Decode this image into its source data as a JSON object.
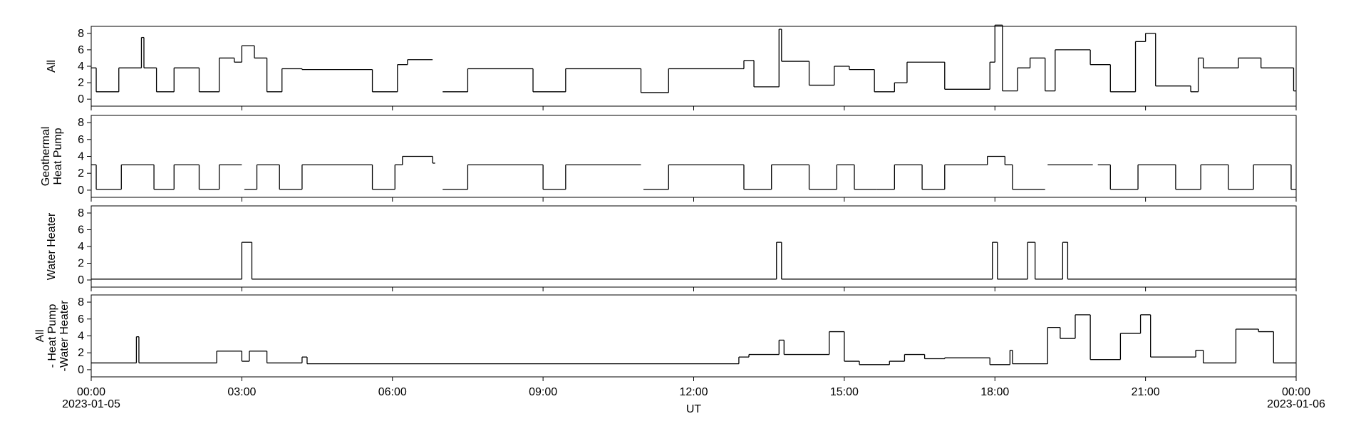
{
  "chart_data": [
    {
      "type": "line",
      "step": "post",
      "color": "#000000",
      "ylabel": "All",
      "ylim": [
        -0.85,
        8.85
      ],
      "yticks": [
        0,
        2,
        4,
        6,
        8
      ],
      "x": [
        0,
        0.1,
        0.55,
        1.0,
        1.05,
        1.3,
        1.65,
        2.15,
        2.55,
        2.85,
        3.0,
        3.25,
        3.5,
        3.8,
        4.2,
        5.6,
        6.1,
        6.3,
        6.8,
        7.0,
        7.5,
        8.8,
        9.45,
        10.95,
        11.5,
        13.0,
        13.2,
        13.7,
        13.75,
        14.3,
        14.8,
        15.1,
        15.6,
        16.0,
        16.25,
        17.0,
        17.9,
        18.0,
        18.15,
        18.45,
        18.7,
        19.0,
        19.2,
        19.9,
        20.3,
        20.8,
        21.0,
        21.2,
        21.9,
        22.05,
        22.15,
        22.85,
        23.3,
        23.95,
        24
      ],
      "values": [
        3.8,
        0.9,
        3.8,
        7.5,
        3.8,
        0.9,
        3.8,
        0.9,
        5.0,
        4.5,
        6.5,
        5.0,
        0.9,
        3.7,
        3.6,
        0.9,
        4.2,
        4.8,
        null,
        0.9,
        3.7,
        0.9,
        3.7,
        0.8,
        3.7,
        4.7,
        1.5,
        8.5,
        4.6,
        1.7,
        4.0,
        3.6,
        0.9,
        2.0,
        4.5,
        1.2,
        4.5,
        9.0,
        1.0,
        3.8,
        5.0,
        1.0,
        6.0,
        4.2,
        0.9,
        7.0,
        8.0,
        1.6,
        0.9,
        5.0,
        3.8,
        5.0,
        3.8,
        1.0,
        1.0
      ]
    },
    {
      "type": "line",
      "step": "post",
      "color": "#000000",
      "ylabel": "Geothermal\nHeat Pump",
      "ylim": [
        -0.85,
        8.85
      ],
      "yticks": [
        0,
        2,
        4,
        6,
        8
      ],
      "x": [
        0,
        0.1,
        0.6,
        1.25,
        1.65,
        2.15,
        2.55,
        3.0,
        3.05,
        3.3,
        3.75,
        4.2,
        5.6,
        6.05,
        6.2,
        6.8,
        6.85,
        7.0,
        7.5,
        9.0,
        9.45,
        10.95,
        11.0,
        11.5,
        13.0,
        13.55,
        14.3,
        14.85,
        15.2,
        15.65,
        16.0,
        16.55,
        17.0,
        17.85,
        18.2,
        18.35,
        19.0,
        19.05,
        19.95,
        20.05,
        20.3,
        20.85,
        21.6,
        22.1,
        22.65,
        23.15,
        23.9,
        24
      ],
      "values": [
        3.0,
        0.1,
        3.0,
        0.1,
        3.0,
        0.1,
        3.0,
        null,
        0.1,
        3.0,
        0.1,
        3.0,
        0.1,
        3.0,
        4.0,
        3.2,
        null,
        0.1,
        3.0,
        0.1,
        3.0,
        null,
        0.1,
        3.0,
        0.1,
        3.0,
        0.1,
        3.0,
        0.1,
        0.1,
        3.0,
        0.1,
        3.0,
        4.0,
        3.0,
        0.1,
        null,
        3.0,
        null,
        3.0,
        0.1,
        3.0,
        0.1,
        3.0,
        0.1,
        3.0,
        0.1,
        0.1
      ]
    },
    {
      "type": "line",
      "step": "post",
      "color": "#000000",
      "ylabel": "Water Heater",
      "ylim": [
        -0.85,
        8.85
      ],
      "yticks": [
        0,
        2,
        4,
        6,
        8
      ],
      "x": [
        0,
        3.0,
        3.2,
        13.65,
        13.75,
        17.95,
        18.05,
        18.65,
        18.8,
        19.35,
        19.45,
        24
      ],
      "values": [
        0.1,
        4.5,
        0.1,
        4.5,
        0.1,
        4.5,
        0.1,
        4.5,
        0.1,
        4.5,
        0.1,
        0.1
      ]
    },
    {
      "type": "line",
      "step": "post",
      "color": "#000000",
      "ylabel": "All\n- Heat Pump\n-Water Heater",
      "ylim": [
        -0.85,
        8.85
      ],
      "yticks": [
        0,
        2,
        4,
        6,
        8
      ],
      "xlim": [
        0,
        24
      ],
      "xlabel": "UT",
      "xticks": [
        {
          "value": 0,
          "label": "00:00\n2023-01-05"
        },
        {
          "value": 3,
          "label": "03:00"
        },
        {
          "value": 6,
          "label": "06:00"
        },
        {
          "value": 9,
          "label": "09:00"
        },
        {
          "value": 12,
          "label": "12:00"
        },
        {
          "value": 15,
          "label": "15:00"
        },
        {
          "value": 18,
          "label": "18:00"
        },
        {
          "value": 21,
          "label": "21:00"
        },
        {
          "value": 24,
          "label": "00:00\n2023-01-06"
        }
      ],
      "x": [
        0,
        0.9,
        0.95,
        2.5,
        3.0,
        3.15,
        3.5,
        4.2,
        4.3,
        12.9,
        13.1,
        13.7,
        13.8,
        14.7,
        15.0,
        15.3,
        15.9,
        16.2,
        16.6,
        17.0,
        17.9,
        18.3,
        18.35,
        19.05,
        19.3,
        19.6,
        19.9,
        20.5,
        20.9,
        21.1,
        22.0,
        22.15,
        22.8,
        23.25,
        23.55,
        24
      ],
      "values": [
        0.8,
        3.9,
        0.8,
        2.2,
        1.0,
        2.2,
        0.8,
        1.5,
        0.7,
        1.5,
        1.8,
        3.5,
        1.8,
        4.5,
        1.0,
        0.6,
        1.0,
        1.8,
        1.3,
        1.4,
        0.6,
        2.3,
        0.7,
        5.0,
        3.7,
        6.5,
        1.2,
        4.3,
        6.5,
        1.5,
        2.3,
        0.8,
        4.8,
        4.5,
        0.8,
        0.8
      ]
    }
  ]
}
